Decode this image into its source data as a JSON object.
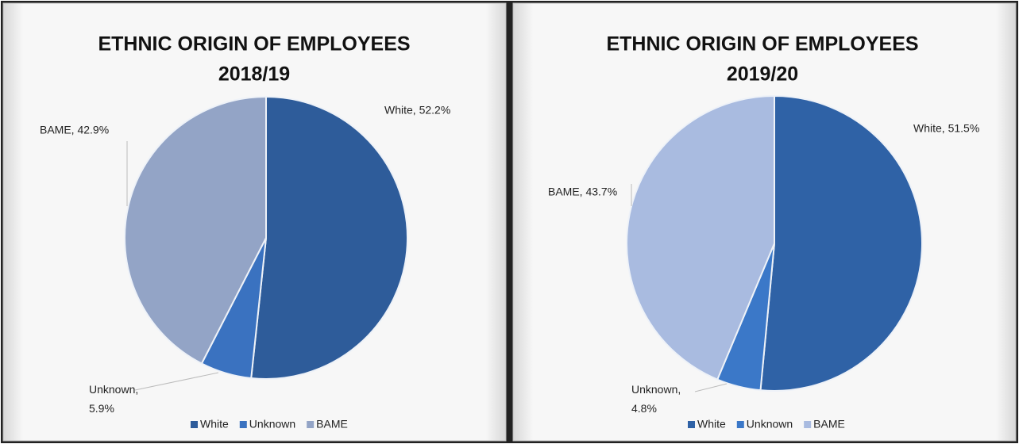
{
  "chart_data": [
    {
      "type": "pie",
      "title": "ETHNIC ORIGIN OF EMPLOYEES",
      "subtitle": "2018/19",
      "categories": [
        "White",
        "Unknown",
        "BAME"
      ],
      "values": [
        52.2,
        5.9,
        42.9
      ],
      "value_labels": [
        "White, 52.2%",
        "Unknown, 5.9%",
        "BAME, 42.9%"
      ],
      "colors": [
        "#2e5c9a",
        "#3a72c0",
        "#93a4c6"
      ],
      "legend": "bottom"
    },
    {
      "type": "pie",
      "title": "ETHNIC ORIGIN OF EMPLOYEES",
      "subtitle": "2019/20",
      "categories": [
        "White",
        "Unknown",
        "BAME"
      ],
      "values": [
        51.5,
        4.8,
        43.7
      ],
      "value_labels": [
        "White, 51.5%",
        "Unknown, 4.8%",
        "BAME, 43.7%"
      ],
      "colors": [
        "#2f62a6",
        "#3b78c8",
        "#a9bbe0"
      ],
      "legend": "bottom"
    }
  ]
}
